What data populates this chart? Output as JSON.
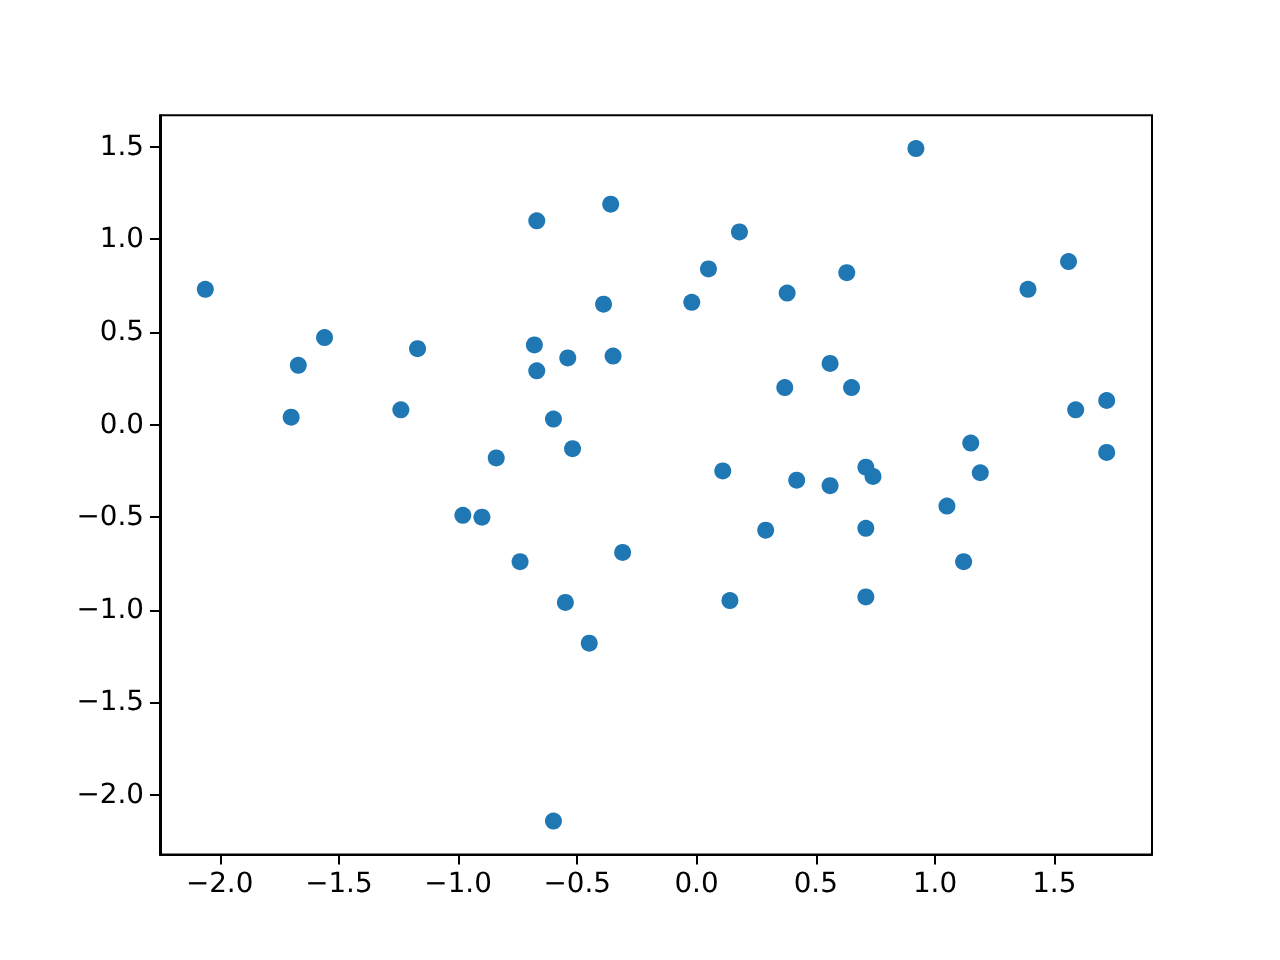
{
  "chart_data": {
    "type": "scatter",
    "x": [
      -2.06,
      -1.67,
      -1.56,
      -1.7,
      -1.17,
      -1.24,
      -0.84,
      -0.67,
      -0.36,
      -0.39,
      -0.68,
      -0.67,
      -0.54,
      -0.35,
      -0.6,
      -0.52,
      0.92,
      0.18,
      0.05,
      -0.02,
      0.38,
      0.63,
      1.39,
      1.56,
      0.56,
      0.37,
      0.65,
      1.72,
      1.59,
      1.72,
      1.15,
      0.11,
      0.42,
      0.56,
      0.71,
      0.74,
      1.19,
      -0.98,
      -0.9,
      -0.74,
      -0.31,
      -0.55,
      -0.45,
      -0.6,
      0.29,
      0.71,
      1.05,
      1.12,
      0.14,
      0.71
    ],
    "values": [
      0.73,
      0.32,
      0.47,
      0.04,
      0.41,
      0.08,
      -0.18,
      1.1,
      1.19,
      0.65,
      0.43,
      0.29,
      0.36,
      0.37,
      0.03,
      -0.13,
      1.49,
      1.04,
      0.84,
      0.66,
      0.71,
      0.82,
      0.73,
      0.88,
      0.33,
      0.2,
      0.2,
      0.13,
      0.08,
      -0.15,
      -0.1,
      -0.25,
      -0.3,
      -0.33,
      -0.23,
      -0.28,
      -0.26,
      -0.49,
      -0.5,
      -0.74,
      -0.69,
      -0.96,
      -1.18,
      -2.14,
      -0.57,
      -0.56,
      -0.44,
      -0.74,
      -0.95,
      -0.93
    ],
    "color": "#1f77b4",
    "marker": "circle",
    "xlim": [
      -2.25,
      1.91
    ],
    "ylim": [
      -2.32,
      1.67
    ],
    "xticks": [
      {
        "value": -2.0,
        "label": "−2.0"
      },
      {
        "value": -1.5,
        "label": "−1.5"
      },
      {
        "value": -1.0,
        "label": "−1.0"
      },
      {
        "value": -0.5,
        "label": "−0.5"
      },
      {
        "value": 0.0,
        "label": "0.0"
      },
      {
        "value": 0.5,
        "label": "0.5"
      },
      {
        "value": 1.0,
        "label": "1.0"
      },
      {
        "value": 1.5,
        "label": "1.5"
      }
    ],
    "yticks": [
      {
        "value": -2.0,
        "label": "−2.0"
      },
      {
        "value": -1.5,
        "label": "−1.5"
      },
      {
        "value": -1.0,
        "label": "−1.0"
      },
      {
        "value": -0.5,
        "label": "−0.5"
      },
      {
        "value": 0.0,
        "label": "0.0"
      },
      {
        "value": 0.5,
        "label": "0.5"
      },
      {
        "value": 1.0,
        "label": "1.0"
      },
      {
        "value": 1.5,
        "label": "1.5"
      }
    ],
    "grid": false
  }
}
